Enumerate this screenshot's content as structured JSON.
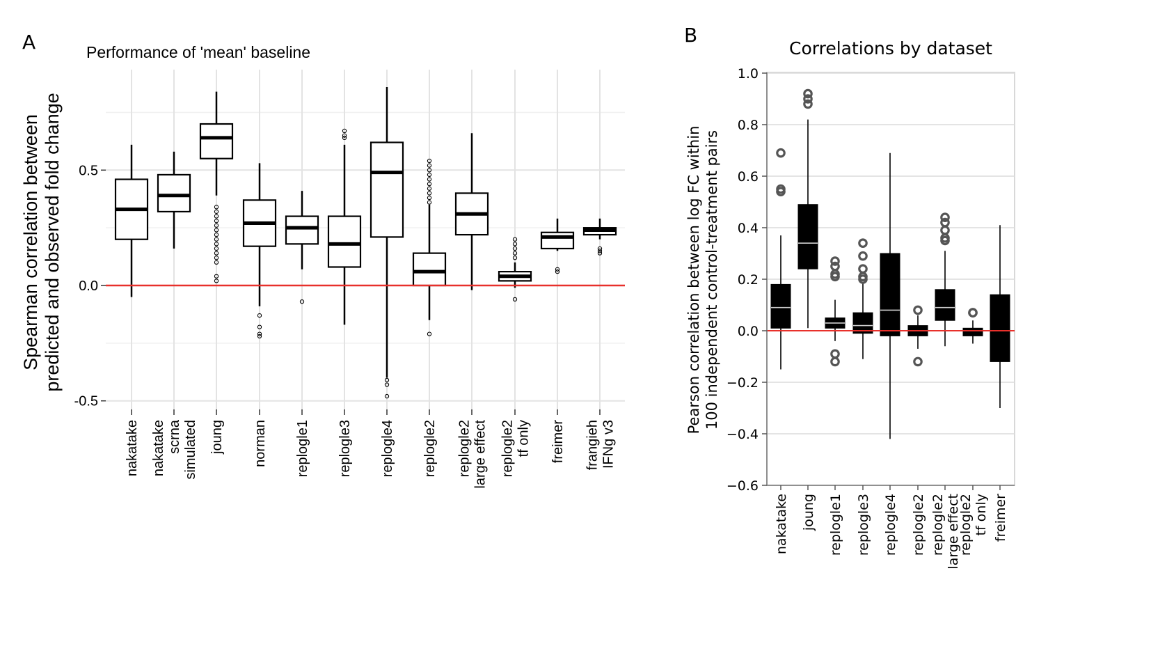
{
  "panels": {
    "a": "A",
    "b": "B"
  },
  "chart_data": [
    {
      "type": "box",
      "title": "Performance of 'mean' baseline",
      "xlabel": "",
      "ylabel": "Spearman correlation between\npredicted and observed fold change",
      "ylim": [
        -0.5,
        0.85
      ],
      "yticks": [
        "-0.5",
        "0.0",
        "0.5"
      ],
      "grid": true,
      "reference_line": {
        "y": 0.0,
        "color": "#e8302b"
      },
      "categories": [
        "nakatake",
        "nakatake\nscrna\nsimulated",
        "joung",
        "norman",
        "replogle1",
        "replogle3",
        "replogle4",
        "replogle2",
        "replogle2\nlarge effect",
        "replogle2\ntf only",
        "freimer",
        "frangieh\nIFNg v3"
      ],
      "boxes": [
        {
          "whislo": -0.05,
          "q1": 0.2,
          "med": 0.33,
          "q3": 0.46,
          "whishi": 0.61,
          "fliers": []
        },
        {
          "whislo": 0.16,
          "q1": 0.32,
          "med": 0.39,
          "q3": 0.48,
          "whishi": 0.58,
          "fliers": []
        },
        {
          "whislo": 0.39,
          "q1": 0.55,
          "med": 0.64,
          "q3": 0.7,
          "whishi": 0.84,
          "fliers": [
            0.34,
            0.32,
            0.3,
            0.28,
            0.26,
            0.24,
            0.22,
            0.2,
            0.18,
            0.16,
            0.14,
            0.12,
            0.1,
            0.04,
            0.02
          ]
        },
        {
          "whislo": -0.09,
          "q1": 0.17,
          "med": 0.27,
          "q3": 0.37,
          "whishi": 0.53,
          "fliers": [
            -0.13,
            -0.18,
            -0.21,
            -0.22
          ]
        },
        {
          "whislo": 0.07,
          "q1": 0.18,
          "med": 0.25,
          "q3": 0.3,
          "whishi": 0.41,
          "fliers": [
            -0.07
          ]
        },
        {
          "whislo": -0.17,
          "q1": 0.08,
          "med": 0.18,
          "q3": 0.3,
          "whishi": 0.61,
          "fliers": [
            0.64,
            0.65,
            0.67
          ]
        },
        {
          "whislo": -0.4,
          "q1": 0.21,
          "med": 0.49,
          "q3": 0.62,
          "whishi": 0.86,
          "fliers": [
            -0.41,
            -0.43,
            -0.48
          ]
        },
        {
          "whislo": -0.15,
          "q1": 0.0,
          "med": 0.06,
          "q3": 0.14,
          "whishi": 0.35,
          "fliers": [
            0.54,
            0.52,
            0.5,
            0.48,
            0.46,
            0.44,
            0.42,
            0.4,
            0.38,
            0.36,
            -0.21
          ]
        },
        {
          "whislo": -0.02,
          "q1": 0.22,
          "med": 0.31,
          "q3": 0.4,
          "whishi": 0.66,
          "fliers": []
        },
        {
          "whislo": -0.01,
          "q1": 0.02,
          "med": 0.04,
          "q3": 0.06,
          "whishi": 0.1,
          "fliers": [
            0.12,
            0.14,
            0.16,
            0.18,
            0.2,
            -0.06
          ]
        },
        {
          "whislo": 0.15,
          "q1": 0.16,
          "med": 0.21,
          "q3": 0.23,
          "whishi": 0.29,
          "fliers": [
            0.06,
            0.07
          ]
        },
        {
          "whislo": 0.2,
          "q1": 0.22,
          "med": 0.24,
          "q3": 0.25,
          "whishi": 0.29,
          "fliers": [
            0.14,
            0.15,
            0.16
          ]
        }
      ]
    },
    {
      "type": "box",
      "title": "Correlations by dataset",
      "xlabel": "",
      "ylabel": "Pearson correlation between log FC within\n100 independent control-treatment pairs",
      "ylim": [
        -0.6,
        1.0
      ],
      "yticks": [
        "−0.6",
        "−0.4",
        "−0.2",
        "0.0",
        "0.2",
        "0.4",
        "0.6",
        "0.8",
        "1.0"
      ],
      "grid": true,
      "reference_line": {
        "y": 0.0,
        "color": "#e8302b"
      },
      "categories": [
        "nakatake",
        "joung",
        "replogle1",
        "replogle3",
        "replogle4",
        "replogle2",
        "replogle2\nlarge effect",
        "replogle2\ntf only",
        "freimer"
      ],
      "boxes": [
        {
          "whislo": -0.15,
          "q1": 0.01,
          "med": 0.09,
          "q3": 0.18,
          "whishi": 0.37,
          "fliers": [
            0.69,
            0.55,
            0.54
          ]
        },
        {
          "whislo": 0.01,
          "q1": 0.24,
          "med": 0.34,
          "q3": 0.49,
          "whishi": 0.82,
          "fliers": [
            0.88,
            0.9,
            0.92
          ]
        },
        {
          "whislo": -0.04,
          "q1": 0.01,
          "med": 0.03,
          "q3": 0.05,
          "whishi": 0.12,
          "fliers": [
            0.27,
            0.25,
            0.22,
            0.21,
            -0.09,
            -0.12
          ]
        },
        {
          "whislo": -0.11,
          "q1": -0.01,
          "med": 0.02,
          "q3": 0.07,
          "whishi": 0.19,
          "fliers": [
            0.34,
            0.29,
            0.24,
            0.21,
            0.2
          ]
        },
        {
          "whislo": -0.42,
          "q1": -0.02,
          "med": 0.08,
          "q3": 0.3,
          "whishi": 0.69,
          "fliers": []
        },
        {
          "whislo": -0.07,
          "q1": -0.02,
          "med": 0.0,
          "q3": 0.02,
          "whishi": 0.06,
          "fliers": [
            0.08,
            -0.12
          ]
        },
        {
          "whislo": -0.06,
          "q1": 0.04,
          "med": 0.09,
          "q3": 0.16,
          "whishi": 0.31,
          "fliers": [
            0.44,
            0.42,
            0.39,
            0.36,
            0.35
          ]
        },
        {
          "whislo": -0.05,
          "q1": -0.02,
          "med": 0.0,
          "q3": 0.01,
          "whishi": 0.04,
          "fliers": [
            0.07,
            0.07
          ]
        },
        {
          "whislo": -0.3,
          "q1": -0.12,
          "med": 0.0,
          "q3": 0.14,
          "whishi": 0.41,
          "fliers": []
        }
      ]
    }
  ]
}
